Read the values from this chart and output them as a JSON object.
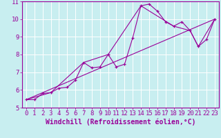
{
  "title": "",
  "xlabel": "Windchill (Refroidissement éolien,°C)",
  "ylabel": "",
  "bg_color": "#c8eef0",
  "line_color": "#990099",
  "xlim": [
    -0.5,
    23.5
  ],
  "ylim": [
    5,
    11
  ],
  "xticks": [
    0,
    1,
    2,
    3,
    4,
    5,
    6,
    7,
    8,
    9,
    10,
    11,
    12,
    13,
    14,
    15,
    16,
    17,
    18,
    19,
    20,
    21,
    22,
    23
  ],
  "yticks": [
    5,
    6,
    7,
    8,
    9,
    10,
    11
  ],
  "series": [
    [
      0,
      5.45
    ],
    [
      1,
      5.45
    ],
    [
      2,
      5.8
    ],
    [
      3,
      5.85
    ],
    [
      4,
      6.1
    ],
    [
      5,
      6.15
    ],
    [
      6,
      6.55
    ],
    [
      7,
      7.55
    ],
    [
      8,
      7.25
    ],
    [
      9,
      7.3
    ],
    [
      10,
      8.0
    ],
    [
      11,
      7.3
    ],
    [
      12,
      7.45
    ],
    [
      13,
      8.95
    ],
    [
      14,
      10.75
    ],
    [
      15,
      10.85
    ],
    [
      16,
      10.45
    ],
    [
      17,
      9.85
    ],
    [
      18,
      9.6
    ],
    [
      19,
      9.85
    ],
    [
      20,
      9.35
    ],
    [
      21,
      8.45
    ],
    [
      22,
      8.85
    ],
    [
      23,
      10.0
    ]
  ],
  "line_envelope": [
    [
      0,
      5.45
    ],
    [
      3,
      5.85
    ],
    [
      7,
      7.55
    ],
    [
      10,
      8.0
    ],
    [
      14,
      10.75
    ],
    [
      18,
      9.6
    ],
    [
      20,
      9.35
    ],
    [
      21,
      8.45
    ],
    [
      23,
      10.0
    ]
  ],
  "line_diagonal": [
    [
      0,
      5.45
    ],
    [
      23,
      10.0
    ]
  ],
  "grid_color": "#aadddd",
  "xlabel_fontsize": 7,
  "tick_fontsize": 6.5
}
